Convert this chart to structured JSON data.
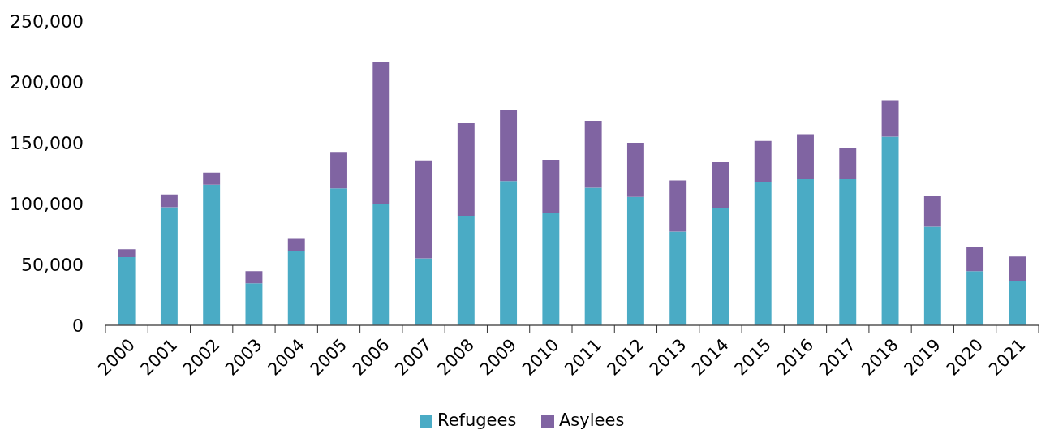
{
  "chart_data": {
    "type": "bar",
    "stacked": true,
    "categories": [
      "2000",
      "2001",
      "2002",
      "2003",
      "2004",
      "2005",
      "2006",
      "2007",
      "2008",
      "2009",
      "2010",
      "2011",
      "2012",
      "2013",
      "2014",
      "2015",
      "2016",
      "2017",
      "2018",
      "2019",
      "2020",
      "2021"
    ],
    "series": [
      {
        "name": "Refugees",
        "color": "#4aabc5",
        "values": [
          56000,
          97000,
          115500,
          34500,
          61000,
          112500,
          99500,
          55000,
          90000,
          118500,
          92500,
          113000,
          105500,
          77000,
          96000,
          118000,
          120000,
          120000,
          155000,
          81000,
          44500,
          36000
        ]
      },
      {
        "name": "Asylees",
        "color": "#8064a2",
        "values": [
          6500,
          10500,
          10000,
          10000,
          10000,
          30000,
          117000,
          80500,
          76000,
          58500,
          43500,
          55000,
          44500,
          42000,
          38000,
          33500,
          37000,
          25500,
          30000,
          25500,
          19500,
          20500
        ]
      }
    ],
    "ylim": [
      0,
      250000
    ],
    "yticks": [
      {
        "value": 0,
        "label": "0"
      },
      {
        "value": 50000,
        "label": "50,000"
      },
      {
        "value": 100000,
        "label": "100,000"
      },
      {
        "value": 150000,
        "label": "150,000"
      },
      {
        "value": 200000,
        "label": "200,000"
      },
      {
        "value": 250000,
        "label": "250,000"
      }
    ],
    "grid": false,
    "legend": "bottom"
  }
}
